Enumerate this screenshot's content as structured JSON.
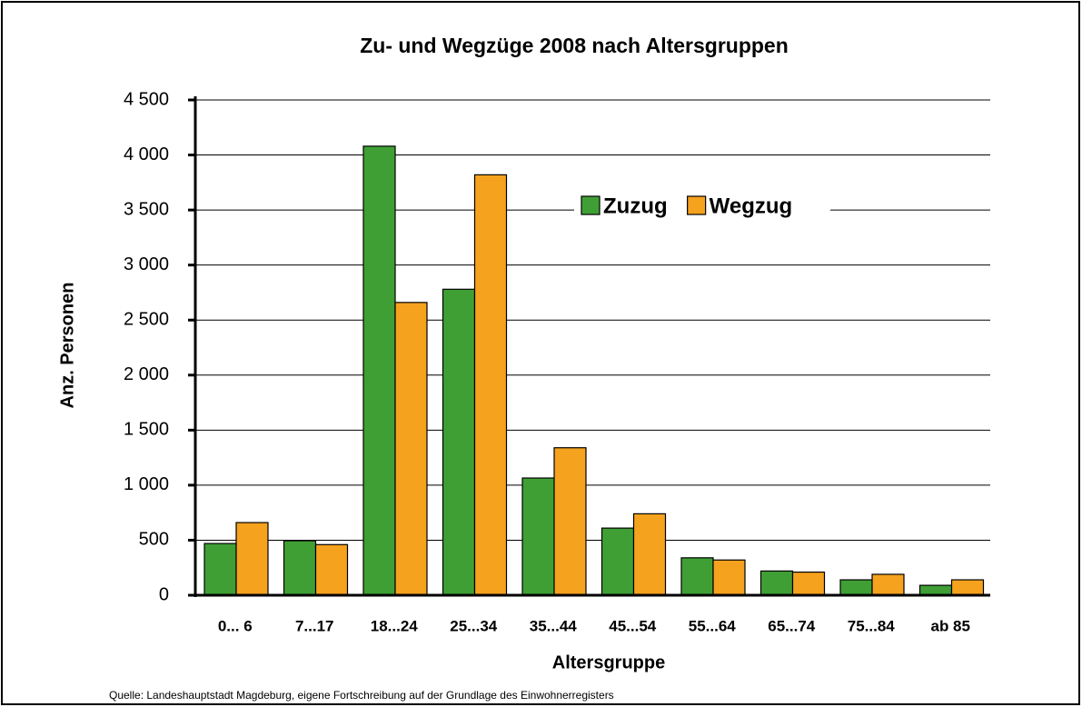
{
  "chart_data": {
    "type": "bar",
    "title": "Zu- und Wegzüge 2008 nach Altersgruppen",
    "x_label": "Altersgruppe",
    "y_label": "Anz. Personen",
    "source": "Quelle: Landeshauptstadt Magdeburg, eigene Fortschreibung auf der Grundlage des Einwohnerregisters",
    "categories": [
      "0... 6",
      "7...17",
      "18...24",
      "25...34",
      "35...44",
      "45...54",
      "55...64",
      "65...74",
      "75...84",
      "ab 85"
    ],
    "series": [
      {
        "name": "Zuzug",
        "color": "#3f9f35",
        "values": [
          470,
          495,
          4080,
          2780,
          1065,
          610,
          340,
          220,
          140,
          90
        ]
      },
      {
        "name": "Wegzug",
        "color": "#f5a21e",
        "values": [
          660,
          460,
          2660,
          3820,
          1340,
          740,
          320,
          210,
          190,
          140
        ]
      }
    ],
    "ylim": [
      0,
      4500
    ],
    "yticks": [
      0,
      500,
      {
        "value": 1000,
        "label": "1 000"
      },
      {
        "value": 1500,
        "label": "1 500"
      },
      {
        "value": 2000,
        "label": "2 000"
      },
      {
        "value": 2500,
        "label": "2 500"
      },
      {
        "value": 3000,
        "label": "3 000"
      },
      {
        "value": 3500,
        "label": "3 500"
      },
      {
        "value": 4000,
        "label": "4 000"
      },
      {
        "value": 4500,
        "label": "4 500"
      }
    ],
    "grid": true,
    "legend": "upper right"
  }
}
